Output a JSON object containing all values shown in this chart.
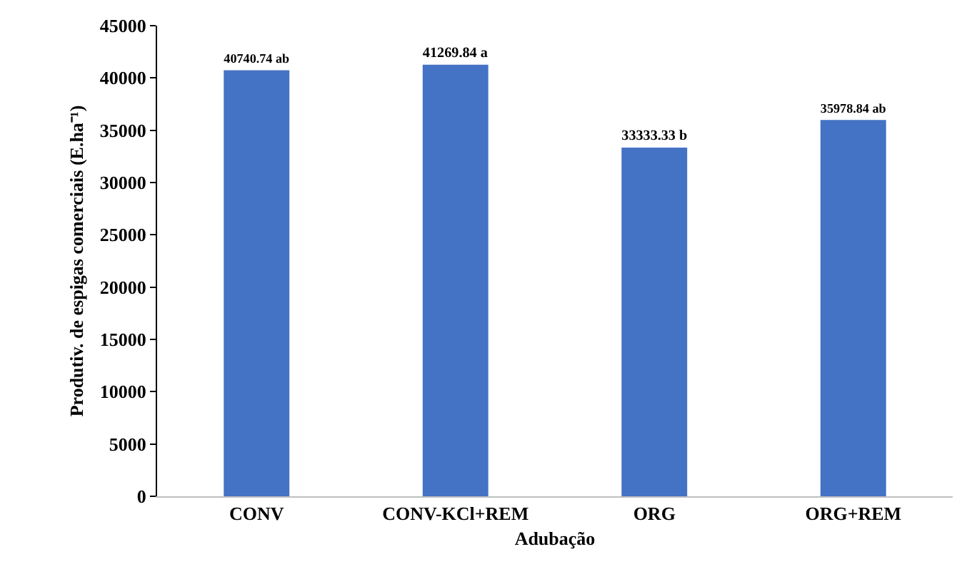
{
  "chart_data": {
    "type": "bar",
    "xlabel": "Adubação",
    "ylabel": "Produtiv. de espigas comerciais (E.ha⁻¹)",
    "categories": [
      "CONV",
      "CONV-KCl+REM",
      "ORG",
      "ORG+REM"
    ],
    "values": [
      40740.74,
      41269.84,
      33333.33,
      35978.84
    ],
    "value_labels": [
      "40740.74 ab",
      "41269.84 a",
      "33333.33 b",
      "35978.84 ab"
    ],
    "color": "#4472c4",
    "ylim": [
      0,
      45000
    ],
    "yticks": [
      0,
      5000,
      10000,
      15000,
      20000,
      25000,
      30000,
      35000,
      40000,
      45000
    ],
    "grid": false,
    "legend": false
  }
}
